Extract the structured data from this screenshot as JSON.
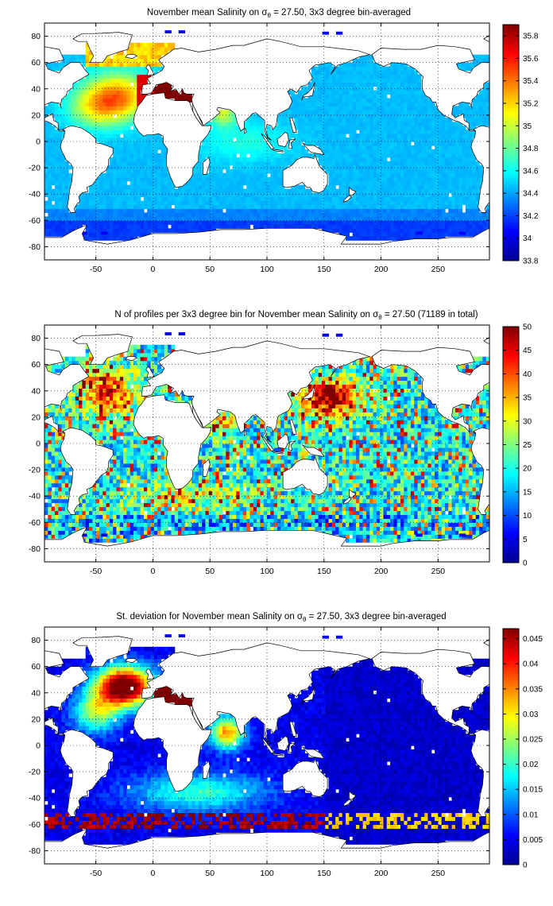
{
  "figure": {
    "background": "#ffffff",
    "land_color": "#ffffff",
    "coast_color": "#000000"
  },
  "chart_data": [
    {
      "type": "heatmap",
      "title": "November mean Salinity on σθ = 27.50, 3x3 degree bin-averaged",
      "title_pre": "November mean Salinity on ",
      "title_sym": "σ",
      "title_sub": "θ",
      "title_post": " = 27.50, 3x3 degree bin-averaged",
      "xlim": [
        -95,
        295
      ],
      "ylim": [
        -90,
        90
      ],
      "xticks": [
        -50,
        0,
        50,
        100,
        150,
        200,
        250
      ],
      "yticks": [
        -80,
        -60,
        -40,
        -20,
        0,
        20,
        40,
        60,
        80
      ],
      "colorbar": {
        "min": 33.8,
        "max": 35.9,
        "ticks": [
          33.8,
          34,
          34.2,
          34.4,
          34.6,
          34.8,
          35,
          35.2,
          35.4,
          35.6,
          35.8
        ],
        "tick_labels": [
          "33.8",
          "34",
          "34.2",
          "34.4",
          "34.6",
          "34.8",
          "35",
          "35.2",
          "35.4",
          "35.6",
          "35.8"
        ]
      },
      "field": "salinity"
    },
    {
      "type": "heatmap",
      "title": "N of profiles per 3x3 degree bin for November mean Salinity on σθ = 27.50 (71189 in total)",
      "title_pre": "N of profiles per 3x3 degree bin for November mean Salinity on ",
      "title_sym": "σ",
      "title_sub": "θ",
      "title_post": " = 27.50 (71189 in total)",
      "total_profiles": 71189,
      "xlim": [
        -95,
        295
      ],
      "ylim": [
        -90,
        90
      ],
      "xticks": [
        -50,
        0,
        50,
        100,
        150,
        200,
        250
      ],
      "yticks": [
        -80,
        -60,
        -40,
        -20,
        0,
        20,
        40,
        60,
        80
      ],
      "colorbar": {
        "min": 0,
        "max": 50,
        "ticks": [
          0,
          5,
          10,
          15,
          20,
          25,
          30,
          35,
          40,
          45,
          50
        ],
        "tick_labels": [
          "0",
          "5",
          "10",
          "15",
          "20",
          "25",
          "30",
          "35",
          "40",
          "45",
          "50"
        ]
      },
      "field": "count"
    },
    {
      "type": "heatmap",
      "title": "St. deviation for November mean Salinity on σθ = 27.50, 3x3 degree bin-averaged",
      "title_pre": "St. deviation for November mean Salinity on ",
      "title_sym": "σ",
      "title_sub": "θ",
      "title_post": " = 27.50, 3x3 degree bin-averaged",
      "xlim": [
        -95,
        295
      ],
      "ylim": [
        -90,
        90
      ],
      "xticks": [
        -50,
        0,
        50,
        100,
        150,
        200,
        250
      ],
      "yticks": [
        -80,
        -60,
        -40,
        -20,
        0,
        20,
        40,
        60,
        80
      ],
      "colorbar": {
        "min": 0,
        "max": 0.047,
        "ticks": [
          0,
          0.005,
          0.01,
          0.015,
          0.02,
          0.025,
          0.03,
          0.035,
          0.04,
          0.045
        ],
        "tick_labels": [
          "0",
          "0.005",
          "0.01",
          "0.015",
          "0.02",
          "0.025",
          "0.03",
          "0.035",
          "0.04",
          "0.045"
        ]
      },
      "field": "stdev"
    }
  ]
}
